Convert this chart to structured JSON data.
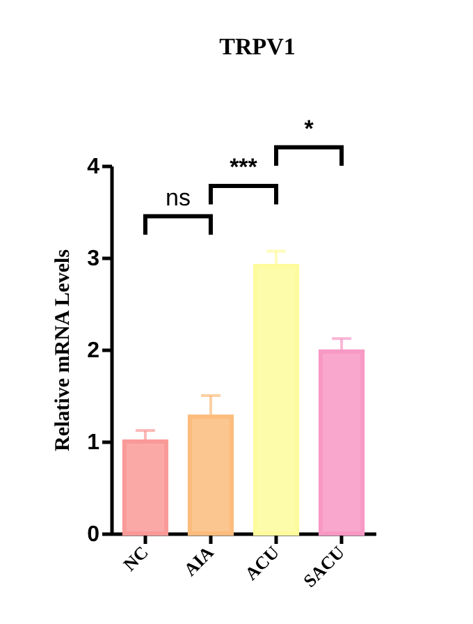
{
  "chart_data": {
    "type": "bar",
    "title": "TRPV1",
    "ylabel": "Relative mRNA Levels",
    "categories": [
      "NC",
      "AIA",
      "ACU",
      "SACU"
    ],
    "values": [
      1.0,
      1.27,
      2.91,
      1.98
    ],
    "colors": [
      "#f99a98",
      "#fbbc7c",
      "#fdfb9c",
      "#f898c4"
    ],
    "errors": [
      [
        1.0,
        1.12
      ],
      [
        1.27,
        1.5
      ],
      [
        2.91,
        3.07
      ],
      [
        1.98,
        2.12
      ]
    ],
    "annotations": [
      "ns",
      "***",
      "*"
    ],
    "ylim": [
      0,
      4
    ],
    "yticks": [
      0,
      1,
      2,
      3,
      4
    ],
    "grid": false,
    "legend": false
  }
}
